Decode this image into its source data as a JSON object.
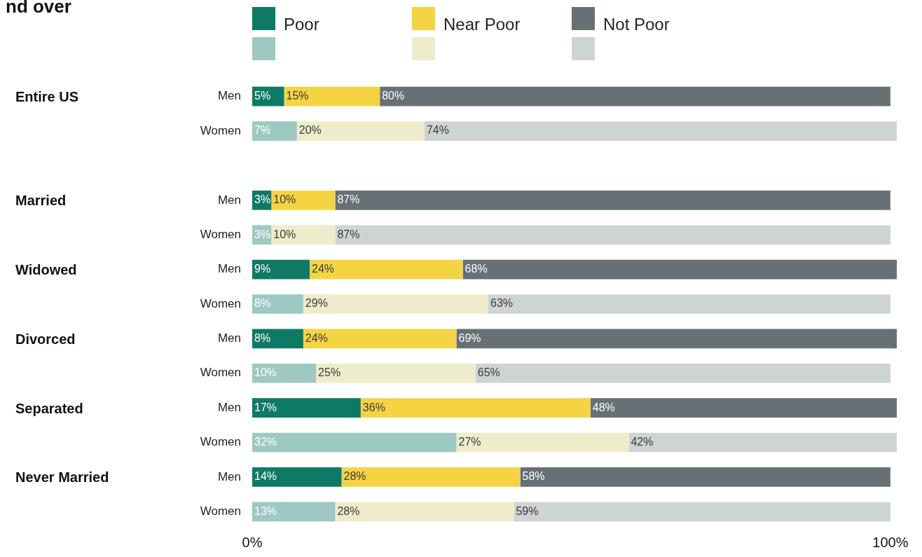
{
  "chart_data": {
    "type": "bar",
    "orientation": "horizontal",
    "stacked": true,
    "title": "nd over",
    "legend": "top",
    "categories": [
      "Men",
      "Women",
      null,
      "Men",
      "Women",
      "Men",
      "Women",
      "Men",
      "Women",
      "Men",
      "Women",
      "Men",
      "Women"
    ],
    "annotations": [
      "Entire US",
      "Married",
      "Widowed",
      "Divorced",
      "Separated",
      "Never Married"
    ],
    "xlim": [
      0,
      101
    ],
    "xticks": [
      {
        "value": 0,
        "label": "0%"
      },
      {
        "value": 100,
        "label": "100%"
      }
    ],
    "grid": false,
    "series": [
      {
        "name": "Poor",
        "color": "#0e7a66",
        "colors": [
          "#0e7a66",
          "#9ec8c2",
          null,
          "#0e7a66",
          "#9ec8c2",
          "#0e7a66",
          "#9ec8c2",
          "#0e7a66",
          "#9ec8c2",
          "#0e7a66",
          "#9ec8c2",
          "#0e7a66",
          "#9ec8c2"
        ],
        "values": [
          5,
          7,
          null,
          3,
          3,
          9,
          8,
          8,
          10,
          17,
          32,
          14,
          13
        ],
        "value_labels": [
          "5%",
          "7%",
          null,
          "3%",
          "3%",
          "9%",
          "8%",
          "8%",
          "10%",
          "17%",
          "32%",
          "14%",
          "13%"
        ]
      },
      {
        "name": "Near Poor",
        "color": "#f5d443",
        "colors": [
          "#f5d443",
          "#efeccb",
          null,
          "#f5d443",
          "#efeccb",
          "#f5d443",
          "#efeccb",
          "#f5d443",
          "#efeccb",
          "#f5d443",
          "#efeccb",
          "#f5d443",
          "#efeccb"
        ],
        "values": [
          15,
          20,
          null,
          10,
          10,
          24,
          29,
          24,
          25,
          36,
          27,
          28,
          28
        ],
        "value_labels": [
          "15%",
          "20%",
          null,
          "10%",
          "10%",
          "24%",
          "29%",
          "24%",
          "25%",
          "36%",
          "27%",
          "28%",
          "28%"
        ]
      },
      {
        "name": "Not Poor",
        "color": "#667075",
        "colors": [
          "#667075",
          "#ced3d3",
          null,
          "#667075",
          "#ced3d3",
          "#667075",
          "#ced3d3",
          "#667075",
          "#ced3d3",
          "#667075",
          "#ced3d3",
          "#667075",
          "#ced3d3"
        ],
        "values": [
          80,
          74,
          null,
          87,
          87,
          68,
          63,
          69,
          65,
          48,
          42,
          58,
          59
        ],
        "value_labels": [
          "80%",
          "74%",
          null,
          "87%",
          "87%",
          "68%",
          "63%",
          "69%",
          "65%",
          "48%",
          "42%",
          "58%",
          "59%"
        ]
      }
    ]
  }
}
